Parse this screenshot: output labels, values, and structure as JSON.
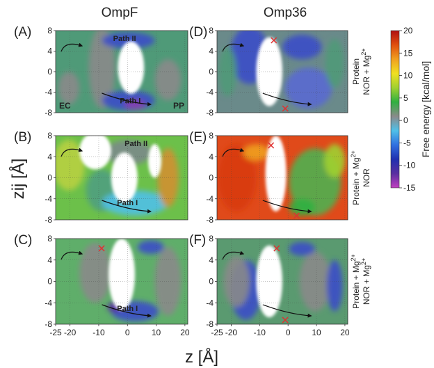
{
  "columns": [
    "OmpF",
    "Omp36"
  ],
  "row_conditions": [
    [
      "Protein",
      "NOR + Mg$2+"
    ],
    [
      "Protein + Mg$2+",
      "NOR"
    ],
    [
      "Protein + Mg$2+",
      "NOR + Mg$2+"
    ]
  ],
  "axes": {
    "xlabel": "z [Å]",
    "ylabel": "zij [Å]",
    "xticks": [
      "-25",
      "-20",
      "-10",
      "0",
      "10",
      "20"
    ],
    "xtick_values": [
      -25,
      -20,
      -10,
      0,
      10,
      20
    ],
    "yticks": [
      "8",
      "4",
      "0",
      "-4",
      "-8"
    ],
    "ytick_values": [
      8,
      4,
      0,
      -4,
      -8
    ]
  },
  "colorbar": {
    "label": "Free energy [kcal/mol]",
    "ticks": [
      "20",
      "15",
      "10",
      "5",
      "0",
      "-5",
      "-10",
      "-15"
    ],
    "tick_values": [
      20,
      15,
      10,
      5,
      0,
      -5,
      -10,
      -15
    ],
    "range": [
      -15,
      20
    ],
    "colors": [
      "#c040c0",
      "#5a2fa0",
      "#2030b0",
      "#3070e0",
      "#50c0e8",
      "#8a8a8a",
      "#30b040",
      "#a0d030",
      "#f0e020",
      "#f0a020",
      "#e05010",
      "#b01010"
    ]
  },
  "chart_data": {
    "type": "heatmap",
    "x_range": [
      -25,
      21
    ],
    "y_range": [
      -8,
      8
    ],
    "panels": [
      {
        "letter": "(A)",
        "column": "OmpF",
        "labels": [
          {
            "text": "Path II",
            "x": -1,
            "y": 6
          },
          {
            "text": "Path I",
            "x": 1,
            "y": -6.2
          }
        ],
        "corner_labels": [
          "EC",
          "PP"
        ],
        "barrier_x": []
      },
      {
        "letter": "(B)",
        "column": "OmpF",
        "labels": [
          {
            "text": "Path II",
            "x": 3,
            "y": 6
          },
          {
            "text": "Path I",
            "x": 0,
            "y": -5.2
          }
        ],
        "corner_labels": [],
        "barrier_x": []
      },
      {
        "letter": "(C)",
        "column": "OmpF",
        "labels": [
          {
            "text": "Path I",
            "x": 0,
            "y": -5.5
          }
        ],
        "corner_labels": [],
        "barrier_x": [
          -9
        ]
      },
      {
        "letter": "(D)",
        "column": "Omp36",
        "labels": [],
        "corner_labels": [],
        "barrier_x": [
          -5,
          -1
        ]
      },
      {
        "letter": "(E)",
        "column": "Omp36",
        "labels": [],
        "corner_labels": [],
        "barrier_x": [
          -6,
          3
        ]
      },
      {
        "letter": "(F)",
        "column": "Omp36",
        "labels": [],
        "corner_labels": [],
        "barrier_x": [
          -4,
          -1
        ]
      }
    ]
  }
}
